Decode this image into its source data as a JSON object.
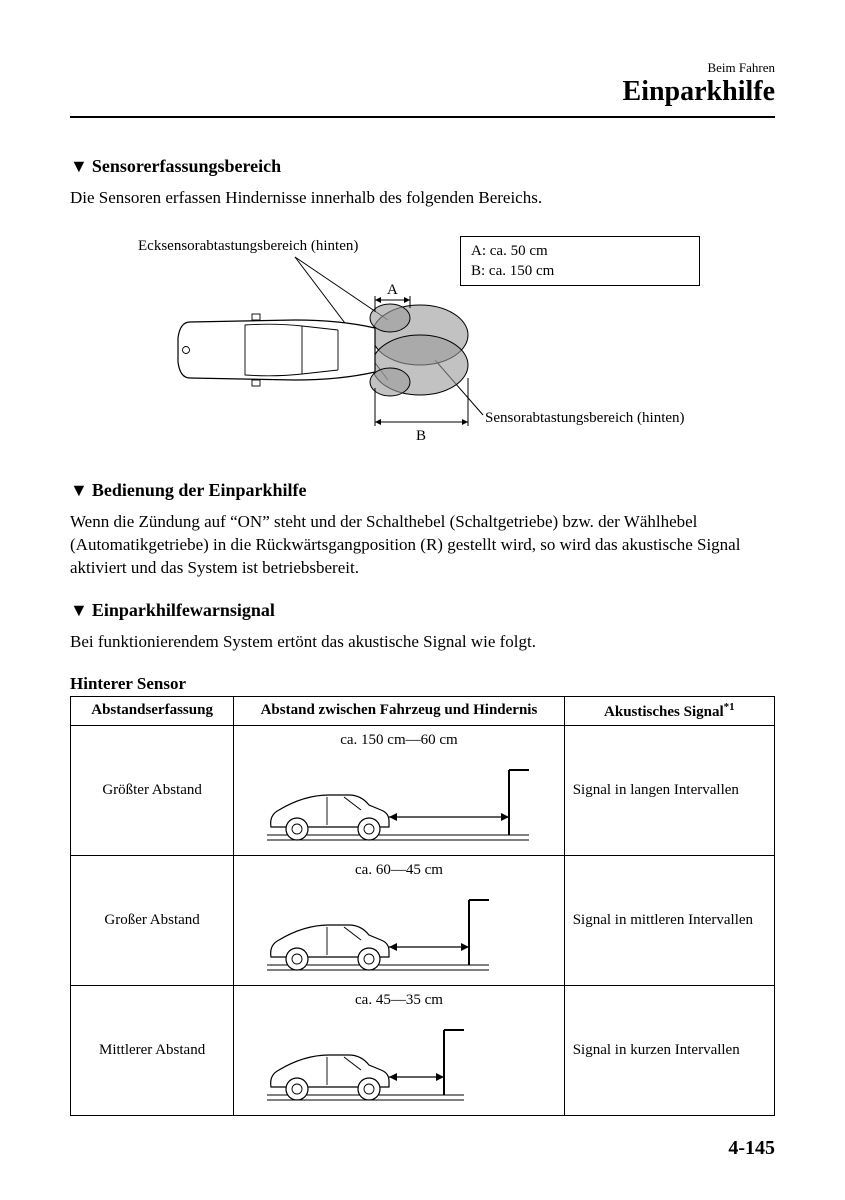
{
  "header": {
    "small": "Beim Fahren",
    "large": "Einparkhilfe"
  },
  "section1": {
    "heading": "Sensorerfassungsbereich",
    "body": "Die Sensoren erfassen Hindernisse innerhalb des folgenden Bereichs."
  },
  "diagram": {
    "callout_top": "Ecksensorabtastungsbereich (hinten)",
    "callout_bottom": "Sensorabtastungsbereich (hinten)",
    "legend_a": "A: ca. 50 cm",
    "legend_b": "B: ca. 150 cm",
    "label_a": "A",
    "label_b": "B",
    "sensor_fill": "#999999",
    "sensor_stroke": "#000000",
    "car_stroke": "#000000"
  },
  "section2": {
    "heading": "Bedienung der Einparkhilfe",
    "body": "Wenn die Zündung auf “ON” steht und der Schalthebel (Schaltgetriebe) bzw. der Wählhebel (Automatikgetriebe) in die Rückwärtsgangposition (R) gestellt wird, so wird das akustische Signal aktiviert und das System ist betriebsbereit."
  },
  "section3": {
    "heading": "Einparkhilfewarnsignal",
    "body": "Bei funktionierendem System ertönt das akustische Signal wie folgt."
  },
  "table": {
    "title": "Hinterer Sensor",
    "columns": [
      "Abstandserfassung",
      "Abstand zwischen Fahrzeug und Hindernis",
      "Akustisches Signal"
    ],
    "footnote_mark": "*1",
    "rows": [
      {
        "label": "Größter Abstand",
        "distance": "ca. 150 cm—60 cm",
        "signal": "Signal in langen Intervallen",
        "arrow_len": 120
      },
      {
        "label": "Großer Abstand",
        "distance": "ca. 60—45 cm",
        "signal": "Signal in mittleren Intervallen",
        "arrow_len": 80
      },
      {
        "label": "Mittlerer Abstand",
        "distance": "ca. 45—35 cm",
        "signal": "Signal in kurzen Intervallen",
        "arrow_len": 55
      }
    ],
    "car_stroke": "#000000"
  },
  "page_number": "4-145"
}
